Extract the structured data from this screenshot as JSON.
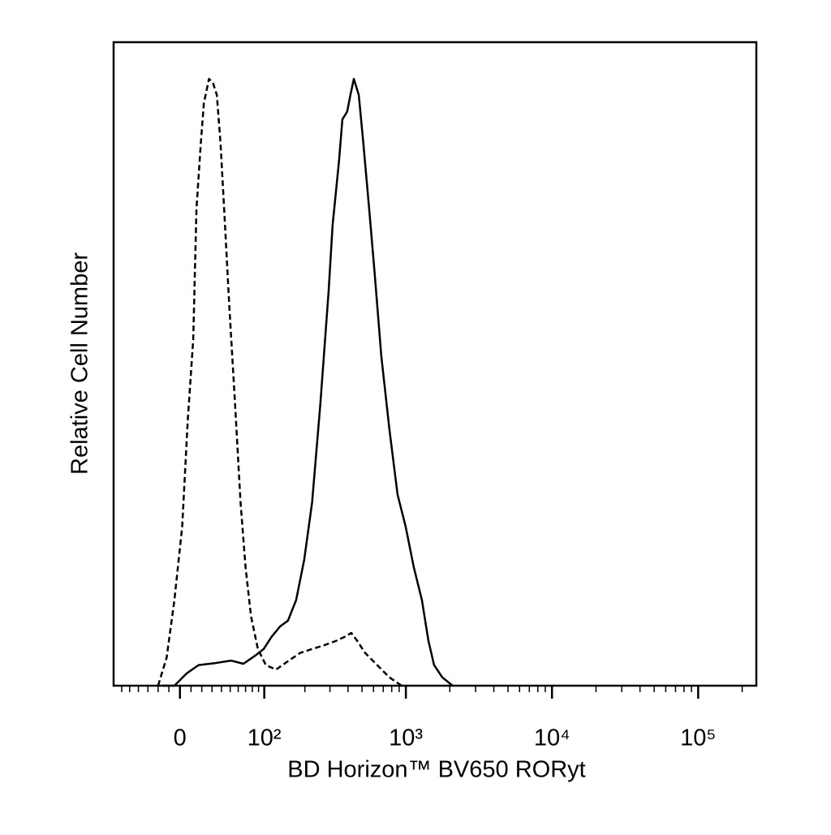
{
  "chart_data": {
    "type": "line",
    "xlabel": "BD Horizon™ BV650 RORyt",
    "ylabel": "Relative Cell Number",
    "xscale": "biexponential",
    "xlim": [
      -71,
      250000
    ],
    "ylim": [
      0,
      100
    ],
    "xticks": [
      0,
      {
        "value": 100,
        "label": "10²"
      },
      {
        "value": 1000,
        "label": "10³"
      },
      {
        "value": 10000,
        "label": "10⁴"
      },
      {
        "value": 100000,
        "label": "10⁵"
      }
    ],
    "xminorticks": [
      -60,
      -50,
      -40,
      -30,
      -20,
      -10,
      10,
      20,
      30,
      40,
      50,
      60,
      70,
      80,
      90,
      200,
      300,
      400,
      500,
      600,
      700,
      800,
      900,
      2000,
      3000,
      4000,
      5000,
      6000,
      7000,
      8000,
      9000,
      20000,
      30000,
      40000,
      50000,
      60000,
      70000,
      80000,
      90000,
      200000
    ],
    "series": [
      {
        "color": "#000000",
        "dashed": true,
        "x": [
          -20,
          -12,
          -5,
          2,
          7,
          12,
          15,
          19,
          22,
          27,
          31,
          35,
          39,
          43,
          49,
          56,
          63,
          70,
          78,
          89,
          103,
          123,
          151,
          185,
          225,
          275,
          334,
          380,
          422,
          462,
          525,
          636,
          771,
          935
        ],
        "values": [
          0,
          4.4,
          13.3,
          24.7,
          41.1,
          53.8,
          74.1,
          84.2,
          90.5,
          94.3,
          93.7,
          91.8,
          84.2,
          74.1,
          58.9,
          43.7,
          28.5,
          18.4,
          10.8,
          5.7,
          3.2,
          2.5,
          3.8,
          5.1,
          5.7,
          6.3,
          7.0,
          7.6,
          8.2,
          7.0,
          5.1,
          3.2,
          1.3,
          0
        ]
      },
      {
        "color": "#000000",
        "dashed": false,
        "x": [
          -16,
          -5,
          6,
          17,
          33,
          51,
          67,
          85,
          99,
          114,
          132,
          151,
          173,
          198,
          225,
          257,
          294,
          313,
          347,
          366,
          395,
          416,
          439,
          475,
          511,
          560,
          612,
          678,
          771,
          877,
          997,
          1133,
          1288,
          1426,
          1560,
          1775,
          2090
        ],
        "values": [
          0,
          0,
          1.9,
          3.2,
          3.5,
          3.9,
          3.4,
          4.7,
          5.7,
          7.6,
          9.2,
          10.1,
          13.3,
          19.6,
          28.5,
          43.7,
          61.4,
          71.5,
          81.6,
          88.0,
          89.2,
          91.8,
          94.3,
          91.8,
          84.2,
          74.1,
          63.9,
          51.3,
          39.9,
          29.7,
          24.7,
          18.4,
          13.3,
          7.0,
          3.2,
          1.3,
          0
        ]
      }
    ]
  }
}
